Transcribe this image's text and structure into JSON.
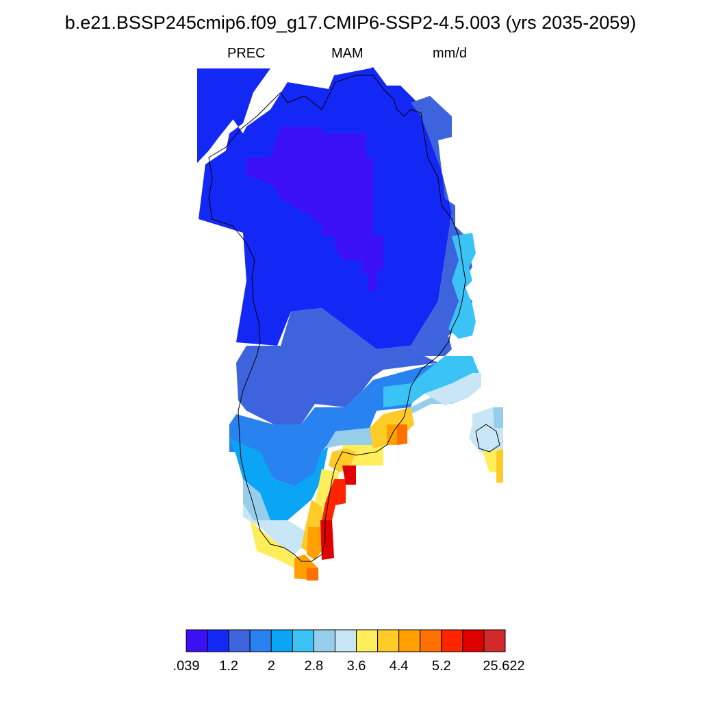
{
  "title": "b.e21.BSSP245cmip6.f09_g17.CMIP6-SSP2-4.5.003 (yrs 2035-2059)",
  "subtitle": {
    "left": "PREC",
    "center": "MAM",
    "right": "mm/d"
  },
  "colorbar": {
    "colors": [
      "#3B10F2",
      "#1428F5",
      "#3D64DC",
      "#2882F0",
      "#0AA5F5",
      "#3CC3F5",
      "#96CDEB",
      "#C8E6F5",
      "#FFEE5C",
      "#FFCB28",
      "#FFA000",
      "#FF7000",
      "#FF2400",
      "#E00000",
      "#D22A2A"
    ],
    "tick_labels": [
      ".039",
      "1.2",
      "2",
      "2.8",
      "3.6",
      "4.4",
      "5.2",
      "25.622"
    ]
  },
  "map": {
    "region": "Greenland",
    "variable": "PREC",
    "season": "MAM",
    "units": "mm/d",
    "note": "Precipitation lowest over the interior ice sheet, highest along the southeast coast"
  }
}
